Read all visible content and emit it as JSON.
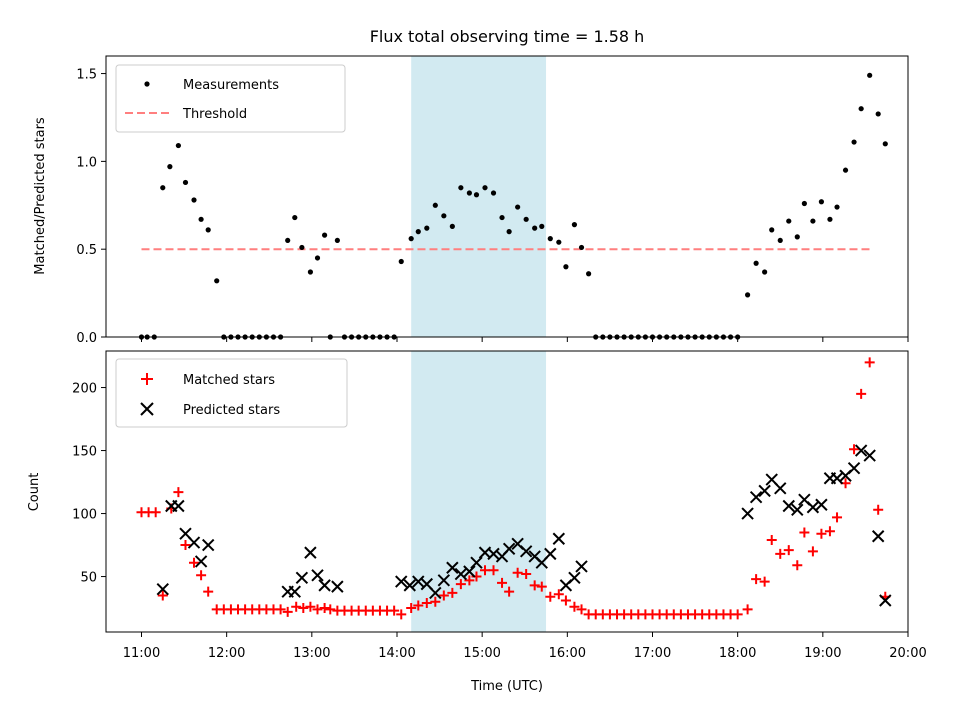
{
  "chart_data": [
    {
      "type": "scatter",
      "title": "Flux total observing time = 1.58 h",
      "xlabel": "",
      "ylabel": "Matched/Predicted stars",
      "xlim": [
        "10:35",
        "20:00"
      ],
      "ylim": [
        0,
        1.6
      ],
      "yticks": [
        "0.0",
        "0.5",
        "1.0",
        "1.5"
      ],
      "legend": {
        "position": "top-left",
        "entries": [
          "Measurements",
          "Threshold"
        ]
      },
      "shaded_span": [
        "14:10",
        "15:45"
      ],
      "colors": {
        "measurements": "#000000",
        "threshold": "#ff7f7f",
        "span": "#add8e6"
      },
      "threshold": {
        "y": 0.5,
        "x_start": "11:00",
        "x_end": "19:35"
      },
      "series": [
        {
          "name": "Measurements",
          "points": [
            [
              "11:00",
              0
            ],
            [
              "11:04",
              0
            ],
            [
              "11:09",
              0
            ],
            [
              "11:15",
              0.85
            ],
            [
              "11:20",
              0.97
            ],
            [
              "11:26",
              1.09
            ],
            [
              "11:31",
              0.88
            ],
            [
              "11:37",
              0.78
            ],
            [
              "11:42",
              0.67
            ],
            [
              "11:47",
              0.61
            ],
            [
              "11:53",
              0.32
            ],
            [
              "11:58",
              0
            ],
            [
              "12:03",
              0
            ],
            [
              "12:08",
              0
            ],
            [
              "12:13",
              0
            ],
            [
              "12:18",
              0
            ],
            [
              "12:23",
              0
            ],
            [
              "12:28",
              0
            ],
            [
              "12:33",
              0
            ],
            [
              "12:38",
              0
            ],
            [
              "12:43",
              0.55
            ],
            [
              "12:48",
              0.68
            ],
            [
              "12:53",
              0.51
            ],
            [
              "12:59",
              0.37
            ],
            [
              "13:04",
              0.45
            ],
            [
              "13:09",
              0.58
            ],
            [
              "13:13",
              0
            ],
            [
              "13:18",
              0.55
            ],
            [
              "13:23",
              0
            ],
            [
              "13:28",
              0
            ],
            [
              "13:33",
              0
            ],
            [
              "13:38",
              0
            ],
            [
              "13:43",
              0
            ],
            [
              "13:48",
              0
            ],
            [
              "13:53",
              0
            ],
            [
              "13:58",
              0
            ],
            [
              "14:03",
              0.43
            ],
            [
              "14:10",
              0.56
            ],
            [
              "14:15",
              0.6
            ],
            [
              "14:21",
              0.62
            ],
            [
              "14:27",
              0.75
            ],
            [
              "14:33",
              0.69
            ],
            [
              "14:39",
              0.63
            ],
            [
              "14:45",
              0.85
            ],
            [
              "14:51",
              0.82
            ],
            [
              "14:56",
              0.81
            ],
            [
              "15:02",
              0.85
            ],
            [
              "15:08",
              0.82
            ],
            [
              "15:14",
              0.68
            ],
            [
              "15:19",
              0.6
            ],
            [
              "15:25",
              0.74
            ],
            [
              "15:31",
              0.67
            ],
            [
              "15:37",
              0.62
            ],
            [
              "15:42",
              0.63
            ],
            [
              "15:48",
              0.56
            ],
            [
              "15:54",
              0.54
            ],
            [
              "15:59",
              0.4
            ],
            [
              "16:05",
              0.64
            ],
            [
              "16:10",
              0.51
            ],
            [
              "16:15",
              0.36
            ],
            [
              "16:20",
              0
            ],
            [
              "16:25",
              0
            ],
            [
              "16:30",
              0
            ],
            [
              "16:35",
              0
            ],
            [
              "16:40",
              0
            ],
            [
              "16:45",
              0
            ],
            [
              "16:50",
              0
            ],
            [
              "16:55",
              0
            ],
            [
              "17:00",
              0
            ],
            [
              "17:05",
              0
            ],
            [
              "17:10",
              0
            ],
            [
              "17:15",
              0
            ],
            [
              "17:20",
              0
            ],
            [
              "17:25",
              0
            ],
            [
              "17:30",
              0
            ],
            [
              "17:35",
              0
            ],
            [
              "17:40",
              0
            ],
            [
              "17:45",
              0
            ],
            [
              "17:50",
              0
            ],
            [
              "17:55",
              0
            ],
            [
              "18:00",
              0
            ],
            [
              "18:07",
              0.24
            ],
            [
              "18:13",
              0.42
            ],
            [
              "18:19",
              0.37
            ],
            [
              "18:24",
              0.61
            ],
            [
              "18:30",
              0.55
            ],
            [
              "18:36",
              0.66
            ],
            [
              "18:42",
              0.57
            ],
            [
              "18:47",
              0.76
            ],
            [
              "18:53",
              0.66
            ],
            [
              "18:59",
              0.77
            ],
            [
              "19:05",
              0.67
            ],
            [
              "19:10",
              0.74
            ],
            [
              "19:16",
              0.95
            ],
            [
              "19:22",
              1.11
            ],
            [
              "19:27",
              1.3
            ],
            [
              "19:33",
              1.49
            ],
            [
              "19:39",
              1.27
            ],
            [
              "19:44",
              1.1
            ]
          ]
        }
      ]
    },
    {
      "type": "scatter",
      "title": "",
      "xlabel": "Time (UTC)",
      "ylabel": "Count",
      "xlim": [
        "10:35",
        "20:00"
      ],
      "ylim": [
        6,
        229
      ],
      "xticks": [
        "11:00",
        "12:00",
        "13:00",
        "14:00",
        "15:00",
        "16:00",
        "17:00",
        "18:00",
        "19:00",
        "20:00"
      ],
      "yticks": [
        "50",
        "100",
        "150",
        "200"
      ],
      "legend": {
        "position": "top-left",
        "entries": [
          "Matched stars",
          "Predicted stars"
        ]
      },
      "shaded_span": [
        "14:10",
        "15:45"
      ],
      "colors": {
        "matched": "#ff0000",
        "predicted": "#000000",
        "span": "#add8e6"
      },
      "series": [
        {
          "name": "Matched stars",
          "points": [
            [
              "11:00",
              101
            ],
            [
              "11:05",
              101
            ],
            [
              "11:10",
              101
            ],
            [
              "11:15",
              35
            ],
            [
              "11:21",
              104
            ],
            [
              "11:26",
              117
            ],
            [
              "11:31",
              75
            ],
            [
              "11:37",
              61
            ],
            [
              "11:42",
              51
            ],
            [
              "11:47",
              38
            ],
            [
              "11:53",
              24
            ],
            [
              "11:58",
              24
            ],
            [
              "12:03",
              24
            ],
            [
              "12:08",
              24
            ],
            [
              "12:13",
              24
            ],
            [
              "12:18",
              24
            ],
            [
              "12:23",
              24
            ],
            [
              "12:28",
              24
            ],
            [
              "12:33",
              24
            ],
            [
              "12:38",
              24
            ],
            [
              "12:43",
              22
            ],
            [
              "12:49",
              26
            ],
            [
              "12:54",
              25
            ],
            [
              "12:59",
              26
            ],
            [
              "13:04",
              24
            ],
            [
              "13:09",
              25
            ],
            [
              "13:13",
              24
            ],
            [
              "13:18",
              23
            ],
            [
              "13:23",
              23
            ],
            [
              "13:28",
              23
            ],
            [
              "13:33",
              23
            ],
            [
              "13:38",
              23
            ],
            [
              "13:43",
              23
            ],
            [
              "13:48",
              23
            ],
            [
              "13:53",
              23
            ],
            [
              "13:58",
              23
            ],
            [
              "14:03",
              20
            ],
            [
              "14:10",
              25
            ],
            [
              "14:15",
              27
            ],
            [
              "14:21",
              29
            ],
            [
              "14:27",
              30
            ],
            [
              "14:33",
              35
            ],
            [
              "14:39",
              37
            ],
            [
              "14:45",
              44
            ],
            [
              "14:51",
              47
            ],
            [
              "14:56",
              50
            ],
            [
              "15:02",
              55
            ],
            [
              "15:08",
              55
            ],
            [
              "15:14",
              45
            ],
            [
              "15:19",
              38
            ],
            [
              "15:25",
              53
            ],
            [
              "15:31",
              52
            ],
            [
              "15:37",
              43
            ],
            [
              "15:42",
              42
            ],
            [
              "15:48",
              34
            ],
            [
              "15:54",
              36
            ],
            [
              "15:59",
              31
            ],
            [
              "16:05",
              26
            ],
            [
              "16:10",
              24
            ],
            [
              "16:15",
              20
            ],
            [
              "16:20",
              20
            ],
            [
              "16:25",
              20
            ],
            [
              "16:30",
              20
            ],
            [
              "16:35",
              20
            ],
            [
              "16:40",
              20
            ],
            [
              "16:45",
              20
            ],
            [
              "16:50",
              20
            ],
            [
              "16:55",
              20
            ],
            [
              "17:00",
              20
            ],
            [
              "17:05",
              20
            ],
            [
              "17:10",
              20
            ],
            [
              "17:15",
              20
            ],
            [
              "17:20",
              20
            ],
            [
              "17:25",
              20
            ],
            [
              "17:30",
              20
            ],
            [
              "17:35",
              20
            ],
            [
              "17:40",
              20
            ],
            [
              "17:45",
              20
            ],
            [
              "17:50",
              20
            ],
            [
              "17:55",
              20
            ],
            [
              "18:00",
              20
            ],
            [
              "18:07",
              24
            ],
            [
              "18:13",
              48
            ],
            [
              "18:19",
              46
            ],
            [
              "18:24",
              79
            ],
            [
              "18:30",
              68
            ],
            [
              "18:36",
              71
            ],
            [
              "18:42",
              59
            ],
            [
              "18:47",
              85
            ],
            [
              "18:53",
              70
            ],
            [
              "18:59",
              84
            ],
            [
              "19:05",
              86
            ],
            [
              "19:10",
              97
            ],
            [
              "19:16",
              124
            ],
            [
              "19:22",
              151
            ],
            [
              "19:27",
              195
            ],
            [
              "19:33",
              220
            ],
            [
              "19:39",
              103
            ],
            [
              "19:44",
              34
            ]
          ]
        },
        {
          "name": "Predicted stars",
          "points": [
            [
              "11:15",
              40
            ],
            [
              "11:21",
              106
            ],
            [
              "11:26",
              106
            ],
            [
              "11:31",
              84
            ],
            [
              "11:37",
              77
            ],
            [
              "11:42",
              62
            ],
            [
              "11:47",
              75
            ],
            [
              "12:43",
              38
            ],
            [
              "12:48",
              38
            ],
            [
              "12:53",
              49
            ],
            [
              "12:59",
              69
            ],
            [
              "13:04",
              51
            ],
            [
              "13:09",
              43
            ],
            [
              "13:18",
              42
            ],
            [
              "14:03",
              46
            ],
            [
              "14:09",
              43
            ],
            [
              "14:15",
              46
            ],
            [
              "14:21",
              44
            ],
            [
              "14:27",
              37
            ],
            [
              "14:33",
              47
            ],
            [
              "14:39",
              57
            ],
            [
              "14:45",
              52
            ],
            [
              "14:51",
              54
            ],
            [
              "14:56",
              61
            ],
            [
              "15:02",
              69
            ],
            [
              "15:08",
              68
            ],
            [
              "15:14",
              66
            ],
            [
              "15:19",
              72
            ],
            [
              "15:25",
              76
            ],
            [
              "15:31",
              70
            ],
            [
              "15:37",
              66
            ],
            [
              "15:42",
              61
            ],
            [
              "15:48",
              68
            ],
            [
              "15:54",
              80
            ],
            [
              "15:59",
              43
            ],
            [
              "16:05",
              49
            ],
            [
              "16:10",
              58
            ],
            [
              "18:07",
              100
            ],
            [
              "18:13",
              113
            ],
            [
              "18:19",
              118
            ],
            [
              "18:24",
              127
            ],
            [
              "18:30",
              120
            ],
            [
              "18:36",
              106
            ],
            [
              "18:42",
              103
            ],
            [
              "18:47",
              111
            ],
            [
              "18:53",
              105
            ],
            [
              "18:59",
              107
            ],
            [
              "19:05",
              128
            ],
            [
              "19:10",
              128
            ],
            [
              "19:16",
              130
            ],
            [
              "19:22",
              136
            ],
            [
              "19:27",
              150
            ],
            [
              "19:33",
              146
            ],
            [
              "19:39",
              82
            ],
            [
              "19:44",
              31
            ]
          ]
        }
      ]
    }
  ]
}
